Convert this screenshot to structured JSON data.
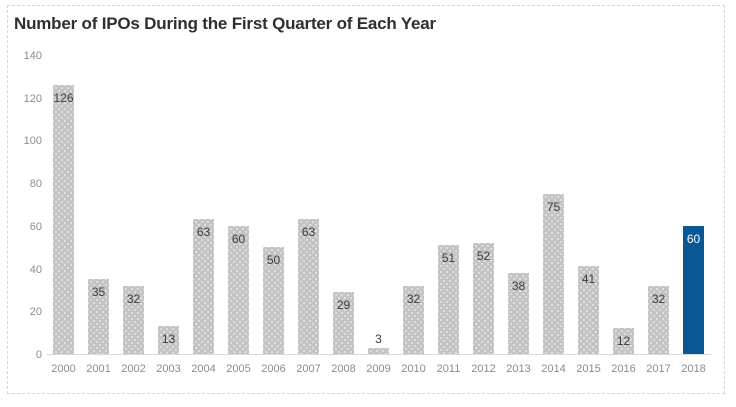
{
  "title": "Number of IPOs During the First Quarter of Each Year",
  "chart_data": {
    "type": "bar",
    "title": "Number of IPOs During the First Quarter of Each Year",
    "categories": [
      "2000",
      "2001",
      "2002",
      "2003",
      "2004",
      "2005",
      "2006",
      "2007",
      "2008",
      "2009",
      "2010",
      "2011",
      "2012",
      "2013",
      "2014",
      "2015",
      "2016",
      "2017",
      "2018"
    ],
    "values": [
      126,
      35,
      32,
      13,
      63,
      60,
      50,
      63,
      29,
      3,
      32,
      51,
      52,
      38,
      75,
      41,
      12,
      32,
      60
    ],
    "xlabel": "",
    "ylabel": "",
    "ylim": [
      0,
      140
    ],
    "yticks": [
      0,
      20,
      40,
      60,
      80,
      100,
      120,
      140
    ],
    "grid": false,
    "legend": false,
    "data_labels": true,
    "highlight_category": "2018",
    "colors": {
      "bar": "#c3c3c3",
      "highlight": "#0a5794",
      "bar_label": "#3a3a3a",
      "highlight_label": "#ffffff",
      "axis_label": "#8c8c8c",
      "axis_line": "#d9d9d9",
      "title": "#2f2f2f",
      "frame": "#d6d6d6"
    }
  }
}
